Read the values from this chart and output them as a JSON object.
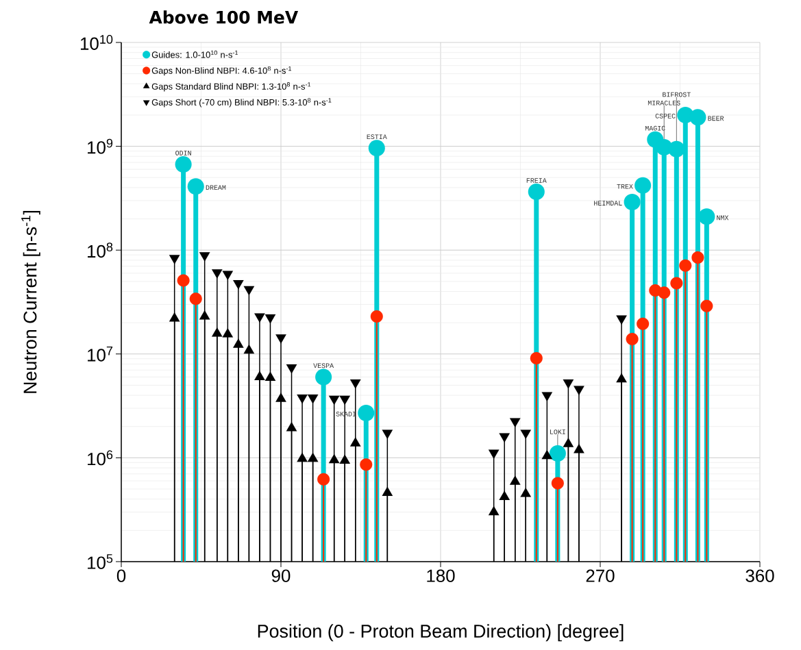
{
  "chart_data": {
    "type": "lollipop",
    "title": "Above 100 MeV",
    "xlabel": "Position (0 - Proton Beam Direction) [degree]",
    "ylabel": "Neutron Current [n-s$^{-1}$]",
    "xlim": [
      0,
      360
    ],
    "xticks": [
      0,
      90,
      180,
      270,
      360
    ],
    "ylim": [
      100000,
      10000000000
    ],
    "yticks": [
      {
        "value": 100000,
        "label": "10$^{5}$"
      },
      {
        "value": 1000000,
        "label": "10$^{6}$"
      },
      {
        "value": 10000000,
        "label": "10$^{7}$"
      },
      {
        "value": 100000000,
        "label": "10$^{8}$"
      },
      {
        "value": 1000000000,
        "label": "10$^{9}$"
      },
      {
        "value": 10000000000,
        "label": "10$^{10}$"
      }
    ],
    "log": "y",
    "grid": true,
    "legend": "top left",
    "series": [
      {
        "name": "Guides: 1.0-10$^{10}$ n-s$^{-1}$",
        "color": "#00cdd2",
        "marker": "circle",
        "x": [
          35,
          42,
          114,
          138,
          144,
          234,
          246,
          288,
          294,
          301,
          306,
          313,
          318,
          325,
          330
        ],
        "values": [
          670000000,
          410000000,
          6000000,
          2700000,
          960000000,
          365000000,
          1100000,
          290000000,
          420000000,
          1160000000,
          980000000,
          940000000,
          2000000000,
          1900000000,
          210000000
        ]
      },
      {
        "name": "Gaps Non-Blind NBPI: 4.6-10$^{8}$ n-s$^{-1}$",
        "color": "#ff2a00",
        "marker": "circle",
        "x": [
          35,
          42,
          114,
          138,
          144,
          234,
          246,
          288,
          294,
          301,
          306,
          313,
          318,
          325,
          330
        ],
        "values": [
          51000000,
          34000000,
          620000,
          860000,
          23000000,
          9100000,
          570000,
          13900000,
          19500000,
          41000000,
          39000000,
          48000000,
          71000000,
          85000000,
          29000000
        ]
      },
      {
        "name": "Gaps Standard Blind NBPI: 1.3-10$^{8}$ n-s$^{-1}$",
        "color": "#000000",
        "marker": "triangle",
        "x": [
          30,
          47,
          54,
          60,
          66,
          72,
          78,
          84,
          90,
          96,
          102,
          108,
          120,
          126,
          132,
          150,
          210,
          216,
          222,
          228,
          240,
          252,
          258,
          282
        ],
        "values": [
          22000000,
          23000000,
          15700000,
          15500000,
          12300000,
          10800000,
          6000000,
          5900000,
          3700000,
          1930000,
          980000,
          980000,
          950000,
          940000,
          1380000,
          460000,
          300000,
          420000,
          590000,
          450000,
          1040000,
          1360000,
          1190000,
          5700000
        ]
      },
      {
        "name": "Gaps Short (-70 cm) Blind NBPI: 5.3-10$^{8}$ n-s$^{-1}$",
        "color": "#000000",
        "marker": "triangle-down",
        "x": [
          30,
          47,
          54,
          60,
          66,
          72,
          78,
          84,
          90,
          96,
          102,
          108,
          120,
          126,
          132,
          150,
          210,
          216,
          222,
          228,
          240,
          252,
          258,
          282
        ],
        "values": [
          84000000,
          89000000,
          61000000,
          59000000,
          48000000,
          42000000,
          23000000,
          22500000,
          14400000,
          7400000,
          3800000,
          3800000,
          3700000,
          3700000,
          5300000,
          1740000,
          1120000,
          1610000,
          2250000,
          1740000,
          4000000,
          5300000,
          4600000,
          22000000
        ]
      }
    ],
    "annotations": [
      {
        "text": "ODIN",
        "x": 35,
        "y": 670000000
      },
      {
        "text": "DREAM",
        "x": 42,
        "y": 410000000
      },
      {
        "text": "VESPA",
        "x": 114,
        "y": 6000000
      },
      {
        "text": "SKADI",
        "x": 138,
        "y": 2700000
      },
      {
        "text": "ESTIA",
        "x": 144,
        "y": 960000000
      },
      {
        "text": "FREIA",
        "x": 234,
        "y": 365000000
      },
      {
        "text": "LOKI",
        "x": 246,
        "y": 1100000
      },
      {
        "text": "HEIMDAL",
        "x": 288,
        "y": 290000000
      },
      {
        "text": "TREX",
        "x": 294,
        "y": 420000000
      },
      {
        "text": "MAGIC",
        "x": 301,
        "y": 1160000000
      },
      {
        "text": "MIRACLES",
        "x": 306,
        "y": 980000000
      },
      {
        "text": "BIFROST",
        "x": 313,
        "y": 940000000
      },
      {
        "text": "CSPEC",
        "x": 318,
        "y": 2000000000
      },
      {
        "text": "BEER",
        "x": 325,
        "y": 1900000000
      },
      {
        "text": "NMX",
        "x": 330,
        "y": 210000000
      }
    ]
  }
}
